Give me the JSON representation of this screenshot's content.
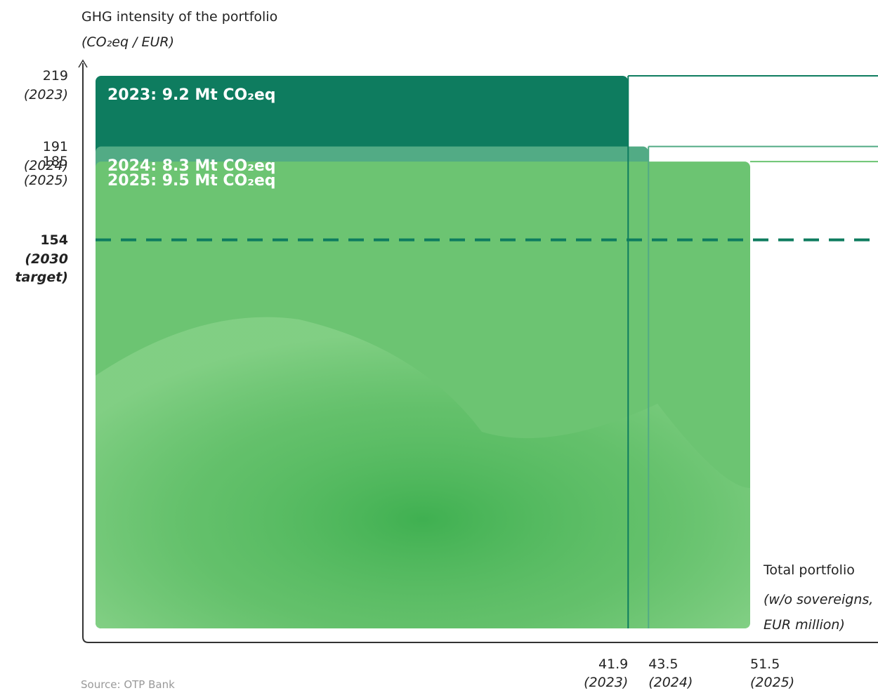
{
  "chart_data": {
    "type": "stacked-rectangles",
    "y_label": "GHG intensity of the portfolio",
    "y_label_unit": "(CO₂eq / EUR)",
    "x_label": "Total portfolio",
    "x_label_unit": "(w/o sovereigns, EUR million)",
    "source": "Source: OTP Bank",
    "series": [
      {
        "name": "2023: 9.2 Mt CO₂eq",
        "color": "#0e7c5f",
        "x": 41.9,
        "y": 219
      },
      {
        "name": "2024: 8.3 Mt CO₂eq",
        "color": "#52ab85",
        "x": 43.5,
        "y": 191
      },
      {
        "name": "2025: 9.5 Mt CO₂eq",
        "color": "#6cc472",
        "x": 51.5,
        "y": 185
      }
    ],
    "xlim": [
      0,
      51.5
    ],
    "ylim": [
      0,
      219
    ],
    "xticks": [
      41.9,
      43.5,
      51.5
    ],
    "xtick_notes": [
      "(2023)",
      "(2024)",
      "(2025)"
    ],
    "yticks": [
      219,
      191,
      185,
      154
    ],
    "ytick_notes": [
      "(2023)",
      "(2024)",
      "(2025)",
      "(2030 target)"
    ],
    "target_color": "#0e7c5f"
  }
}
